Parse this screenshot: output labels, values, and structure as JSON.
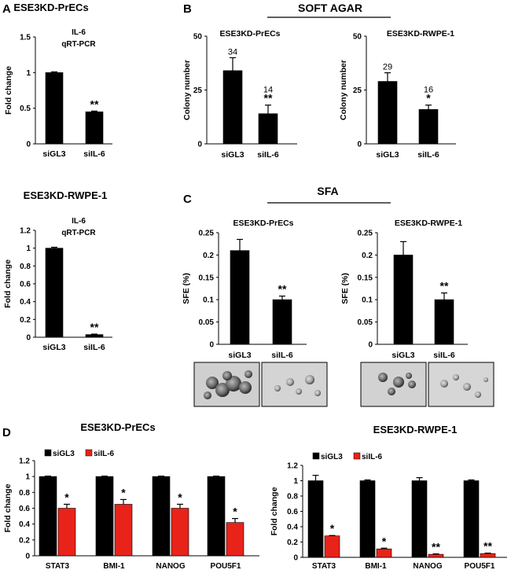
{
  "colors": {
    "bar_black": "#000000",
    "bar_red": "#e8231a",
    "axis": "#000000"
  },
  "panel_labels": {
    "a": "A",
    "b": "B",
    "c": "C",
    "d": "D"
  },
  "section_titles": {
    "soft_agar": "SOFT AGAR",
    "sfa": "SFA"
  },
  "chart_data": [
    {
      "id": "a1",
      "type": "bar",
      "heading": "ESE3KD-PrECs",
      "title_lines": [
        "IL-6",
        "qRT-PCR"
      ],
      "ylabel": "Fold change",
      "categories": [
        "siGL3",
        "siIL-6"
      ],
      "values": [
        1.0,
        0.45
      ],
      "errors": [
        0.01,
        0.01
      ],
      "annotations": [
        "",
        "**"
      ],
      "ylim": [
        0,
        1.5
      ],
      "ticks": [
        "0",
        "0.5",
        "1",
        "1.5"
      ],
      "colors": [
        "#000000",
        "#000000"
      ]
    },
    {
      "id": "a2",
      "type": "bar",
      "heading": "ESE3KD-RWPE-1",
      "title_lines": [
        "IL-6",
        "qRT-PCR"
      ],
      "ylabel": "Fold change",
      "categories": [
        "siGL3",
        "siIL-6"
      ],
      "values": [
        1.0,
        0.03
      ],
      "errors": [
        0.01,
        0.005
      ],
      "annotations": [
        "",
        "**"
      ],
      "ylim": [
        0,
        1.2
      ],
      "ticks": [
        "0",
        "0.2",
        "0.4",
        "0.6",
        "0.8",
        "1",
        "1.2"
      ],
      "colors": [
        "#000000",
        "#000000"
      ]
    },
    {
      "id": "b1",
      "type": "bar",
      "heading": "ESE3KD-PrECs",
      "ylabel": "Colony number",
      "categories": [
        "siGL3",
        "siIL-6"
      ],
      "values": [
        34,
        14
      ],
      "errors": [
        6,
        4
      ],
      "value_labels": [
        "34",
        "14"
      ],
      "annotations": [
        "",
        "**"
      ],
      "ylim": [
        0,
        50
      ],
      "ticks": [
        "0",
        "25",
        "50"
      ],
      "colors": [
        "#000000",
        "#000000"
      ]
    },
    {
      "id": "b2",
      "type": "bar",
      "heading": "ESE3KD-RWPE-1",
      "ylabel": "Colony number",
      "categories": [
        "siGL3",
        "siIL-6"
      ],
      "values": [
        29,
        16
      ],
      "errors": [
        4,
        2
      ],
      "value_labels": [
        "29",
        "16"
      ],
      "annotations": [
        "",
        "*"
      ],
      "ylim": [
        0,
        50
      ],
      "ticks": [
        "0",
        "25",
        "50"
      ],
      "colors": [
        "#000000",
        "#000000"
      ]
    },
    {
      "id": "c1",
      "type": "bar",
      "heading": "ESE3KD-PrECs",
      "ylabel": "SFE (%)",
      "categories": [
        "siGL3",
        "siIL-6"
      ],
      "values": [
        0.21,
        0.1
      ],
      "errors": [
        0.025,
        0.008
      ],
      "annotations": [
        "",
        "**"
      ],
      "ylim": [
        0,
        0.25
      ],
      "ticks": [
        "0",
        "0.05",
        "0.1",
        "0.15",
        "0.2",
        "0.25"
      ],
      "colors": [
        "#000000",
        "#000000"
      ]
    },
    {
      "id": "c2",
      "type": "bar",
      "heading": "ESE3KD-RWPE-1",
      "ylabel": "SFE (%)",
      "categories": [
        "siGL3",
        "siIL-6"
      ],
      "values": [
        0.2,
        0.1
      ],
      "errors": [
        0.03,
        0.015
      ],
      "annotations": [
        "",
        "**"
      ],
      "ylim": [
        0,
        0.25
      ],
      "ticks": [
        "0",
        "0.05",
        "0.1",
        "0.15",
        "0.2",
        "0.25"
      ],
      "colors": [
        "#000000",
        "#000000"
      ]
    },
    {
      "id": "d1",
      "type": "bar",
      "heading": "ESE3KD-PrECs",
      "ylabel": "Fold change",
      "categories": [
        "STAT3",
        "BMI-1",
        "NANOG",
        "POU5F1"
      ],
      "series": [
        {
          "name": "siGL3",
          "color": "#000000",
          "values": [
            1,
            1,
            1,
            1
          ],
          "errors": [
            0.005,
            0.005,
            0.005,
            0.005
          ],
          "annotations": [
            "",
            "",
            "",
            ""
          ]
        },
        {
          "name": "siIL-6",
          "color": "#e8231a",
          "values": [
            0.6,
            0.65,
            0.6,
            0.42
          ],
          "errors": [
            0.05,
            0.06,
            0.05,
            0.05
          ],
          "annotations": [
            "*",
            "*",
            "*",
            "*"
          ]
        }
      ],
      "ylim": [
        0,
        1.2
      ],
      "ticks": [
        "0",
        "0.2",
        "0.4",
        "0.6",
        "0.8",
        "1",
        "1.2"
      ]
    },
    {
      "id": "d2",
      "type": "bar",
      "heading": "ESE3KD-RWPE-1",
      "ylabel": "Fold change",
      "categories": [
        "STAT3",
        "BMI-1",
        "NANOG",
        "POU5F1"
      ],
      "series": [
        {
          "name": "siGL3",
          "color": "#000000",
          "values": [
            1,
            1,
            1,
            1
          ],
          "errors": [
            0.07,
            0.01,
            0.04,
            0.01
          ],
          "annotations": [
            "",
            "",
            "",
            ""
          ]
        },
        {
          "name": "siIL-6",
          "color": "#e8231a",
          "values": [
            0.28,
            0.11,
            0.04,
            0.05
          ],
          "errors": [
            0.005,
            0.01,
            0.005,
            0.005
          ],
          "annotations": [
            "*",
            "*",
            "**",
            "**"
          ]
        }
      ],
      "ylim": [
        0,
        1.2
      ],
      "ticks": [
        "0",
        "0.2",
        "0.4",
        "0.6",
        "0.8",
        "1",
        "1.2"
      ]
    }
  ]
}
